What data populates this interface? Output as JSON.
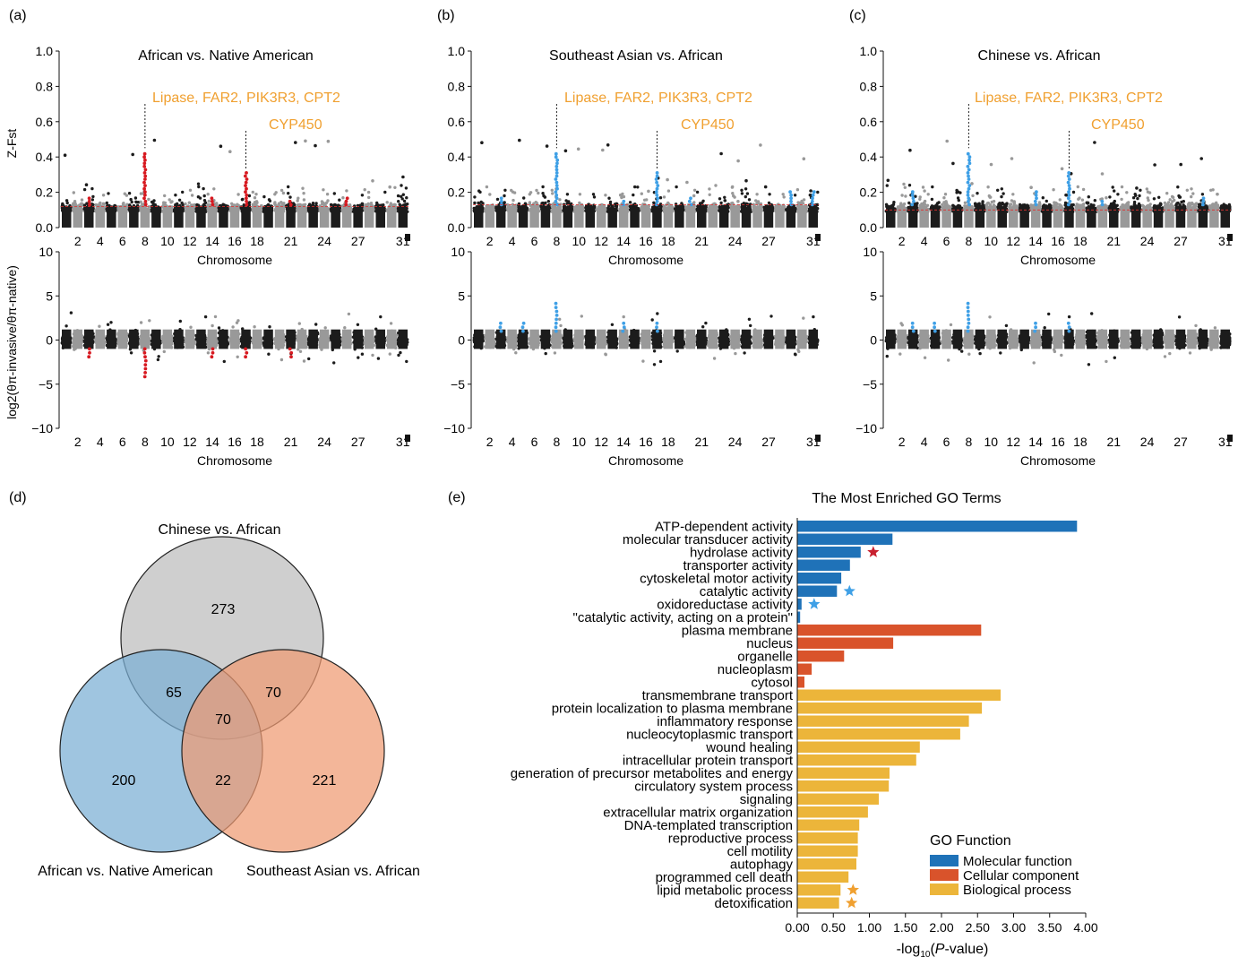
{
  "panels": {
    "a": {
      "label": "(a)",
      "title": "African vs. Native American",
      "highlight_color": "#d71920"
    },
    "b": {
      "label": "(b)",
      "title": "Southeast Asian vs. African",
      "highlight_color": "#3fa0e6"
    },
    "c": {
      "label": "(c)",
      "title": "Chinese vs. African",
      "highlight_color": "#3fa0e6"
    },
    "d": {
      "label": "(d)"
    },
    "e": {
      "label": "(e)"
    }
  },
  "manhattan": {
    "fst_ylabel": "Z-Fst",
    "pi_ylabel": "log2(θπ-invasive/θπ-native)",
    "xlabel": "Chromosome",
    "fst_ticks": [
      "1.0",
      "0.8",
      "0.6",
      "0.4",
      "0.2",
      "0.0"
    ],
    "pi_ticks": [
      "10",
      "5",
      "0",
      "−5",
      "−10"
    ],
    "chromosome_ticks": [
      "2",
      "4",
      "6",
      "8",
      "10",
      "12",
      "14",
      "16",
      "18",
      "21",
      "24",
      "27",
      "31"
    ],
    "annotations": {
      "lipase": "Lipase, FAR2, PIK3R3, CPT2",
      "cyp": "CYP450"
    },
    "thresholds": {
      "a": 0.12,
      "b": 0.13,
      "c": 0.1
    }
  },
  "venn": {
    "sets": [
      {
        "name": "Chinese vs. African",
        "color": "#bdbdbd"
      },
      {
        "name": "African vs. Native American",
        "color": "#7aaed4"
      },
      {
        "name": "Southeast Asian vs. African",
        "color": "#ee9a72"
      }
    ],
    "regions": {
      "chinese_only": "273",
      "african_only": "200",
      "southeast_only": "221",
      "chinese_african": "65",
      "chinese_southeast": "70",
      "all_three": "70",
      "african_southeast": "22"
    }
  },
  "chart_data": {
    "type": "bar",
    "orientation": "horizontal",
    "title": "The Most  Enriched GO Terms",
    "xlabel_prefix": "-log",
    "xlabel_sub": "10",
    "xlabel_open": "(",
    "xlabel_italic": "P",
    "xlabel_suffix": "-value)",
    "xlim": [
      0,
      4
    ],
    "xticks": [
      "0.00",
      "0.50",
      "1.00",
      "1.50",
      "2.00",
      "2.50",
      "3.00",
      "3.50",
      "4.00"
    ],
    "legend_title": "GO Function",
    "legend": [
      {
        "name": "Molecular function",
        "color": "#1f72b8"
      },
      {
        "name": "Cellular component",
        "color": "#d9532b"
      },
      {
        "name": "Biological process",
        "color": "#ecb53a"
      }
    ],
    "categories": [
      {
        "label": "ATP-dependent activity",
        "value": 3.88,
        "group": 0,
        "star": ""
      },
      {
        "label": "molecular transducer activity",
        "value": 1.32,
        "group": 0,
        "star": ""
      },
      {
        "label": "hydrolase activity",
        "value": 0.88,
        "group": 0,
        "star": "#c8202f"
      },
      {
        "label": "transporter activity",
        "value": 0.73,
        "group": 0,
        "star": ""
      },
      {
        "label": "cytoskeletal motor activity",
        "value": 0.61,
        "group": 0,
        "star": ""
      },
      {
        "label": "catalytic activity",
        "value": 0.55,
        "group": 0,
        "star": "#3fa0e6"
      },
      {
        "label": "oxidoreductase activity",
        "value": 0.06,
        "group": 0,
        "star": "#3fa0e6"
      },
      {
        "label": "\"catalytic activity, acting on a protein\"",
        "value": 0.04,
        "group": 0,
        "star": ""
      },
      {
        "label": "plasma membrane",
        "value": 2.55,
        "group": 1,
        "star": ""
      },
      {
        "label": "nucleus",
        "value": 1.33,
        "group": 1,
        "star": ""
      },
      {
        "label": "organelle",
        "value": 0.65,
        "group": 1,
        "star": ""
      },
      {
        "label": "nucleoplasm",
        "value": 0.2,
        "group": 1,
        "star": ""
      },
      {
        "label": "cytosol",
        "value": 0.1,
        "group": 1,
        "star": ""
      },
      {
        "label": "transmembrane transport",
        "value": 2.82,
        "group": 2,
        "star": ""
      },
      {
        "label": "protein localization to plasma membrane",
        "value": 2.56,
        "group": 2,
        "star": ""
      },
      {
        "label": "inflammatory response",
        "value": 2.38,
        "group": 2,
        "star": ""
      },
      {
        "label": "nucleocytoplasmic transport",
        "value": 2.26,
        "group": 2,
        "star": ""
      },
      {
        "label": "wound healing",
        "value": 1.7,
        "group": 2,
        "star": ""
      },
      {
        "label": "intracellular protein transport",
        "value": 1.65,
        "group": 2,
        "star": ""
      },
      {
        "label": "generation of precursor metabolites and energy",
        "value": 1.28,
        "group": 2,
        "star": ""
      },
      {
        "label": "circulatory system process",
        "value": 1.27,
        "group": 2,
        "star": ""
      },
      {
        "label": "signaling",
        "value": 1.13,
        "group": 2,
        "star": ""
      },
      {
        "label": "extracellular matrix organization",
        "value": 0.98,
        "group": 2,
        "star": ""
      },
      {
        "label": "DNA-templated transcription",
        "value": 0.86,
        "group": 2,
        "star": ""
      },
      {
        "label": "reproductive process",
        "value": 0.84,
        "group": 2,
        "star": ""
      },
      {
        "label": "cell motility",
        "value": 0.84,
        "group": 2,
        "star": ""
      },
      {
        "label": "autophagy",
        "value": 0.82,
        "group": 2,
        "star": ""
      },
      {
        "label": "programmed cell death",
        "value": 0.71,
        "group": 2,
        "star": ""
      },
      {
        "label": "lipid metabolic process",
        "value": 0.6,
        "group": 2,
        "star": "#f0a030"
      },
      {
        "label": "detoxification",
        "value": 0.58,
        "group": 2,
        "star": "#f0a030"
      }
    ]
  }
}
